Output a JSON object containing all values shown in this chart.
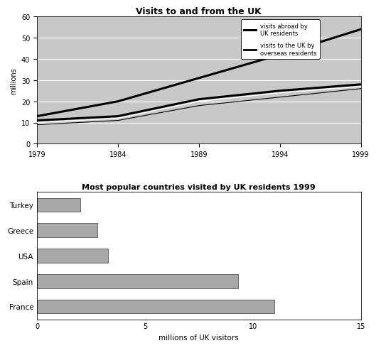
{
  "line_title": "Visits to and from the UK",
  "line_years": [
    1979,
    1984,
    1989,
    1994,
    1999
  ],
  "visits_abroad": [
    13,
    20,
    31,
    42,
    54
  ],
  "visits_to_uk_upper": [
    11,
    13,
    21,
    25,
    28
  ],
  "visits_to_uk_mid": [
    10,
    12,
    20,
    24,
    27
  ],
  "visits_to_uk_lower": [
    9,
    11,
    18,
    22,
    26
  ],
  "line_ylabel": "millions",
  "line_ylim": [
    0,
    60
  ],
  "line_yticks": [
    0,
    10,
    20,
    30,
    40,
    50,
    60
  ],
  "line_xticks": [
    1979,
    1984,
    1989,
    1994,
    1999
  ],
  "legend_abroad": "visits abroad by\nUK residents",
  "legend_overseas": "visits to the UK by\noverseas residents",
  "bar_title": "Most popular countries visited by UK residents 1999",
  "bar_categories": [
    "France",
    "Spain",
    "USA",
    "Greece",
    "Turkey"
  ],
  "bar_values": [
    11.0,
    9.3,
    3.3,
    2.8,
    2.0
  ],
  "bar_color": "#a8a8a8",
  "bar_xlabel": "millions of UK visitors",
  "bar_xlim": [
    0,
    15
  ],
  "bar_xticks": [
    0,
    5,
    10,
    15
  ],
  "plot_bg_color": "#c8c8c8"
}
